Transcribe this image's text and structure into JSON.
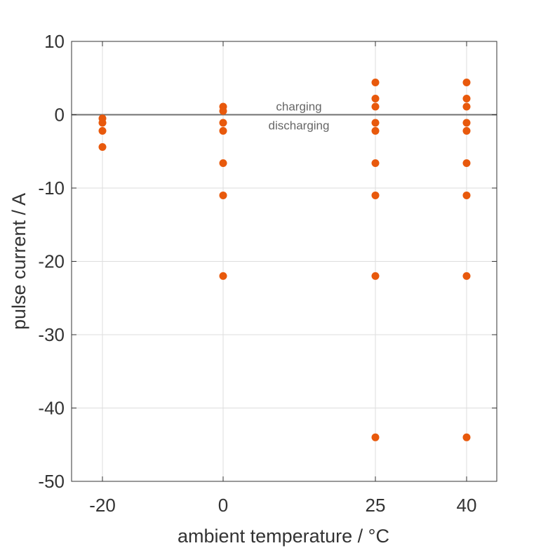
{
  "chart_data": {
    "type": "scatter",
    "xlabel": "ambient temperature / °C",
    "ylabel": "pulse current / A",
    "x_ticks": [
      -20,
      0,
      25,
      40
    ],
    "x_tick_labels": [
      "-20",
      "0",
      "25",
      "40"
    ],
    "y_ticks": [
      10,
      0,
      -10,
      -20,
      -30,
      -40,
      -50
    ],
    "y_tick_labels": [
      "10",
      "0",
      "-10",
      "-20",
      "-30",
      "-40",
      "-50"
    ],
    "ylim": [
      -50,
      10
    ],
    "grid": true,
    "reference_line": {
      "y": 0,
      "color": "#707070"
    },
    "annotations": {
      "above": "charging",
      "below": "discharging"
    },
    "marker_color": "#e8590c",
    "points": [
      {
        "x": -20,
        "y": -0.5
      },
      {
        "x": -20,
        "y": -1.1
      },
      {
        "x": -20,
        "y": -2.2
      },
      {
        "x": -20,
        "y": -4.4
      },
      {
        "x": 0,
        "y": 1.1
      },
      {
        "x": 0,
        "y": 0.5
      },
      {
        "x": 0,
        "y": -1.1
      },
      {
        "x": 0,
        "y": -2.2
      },
      {
        "x": 0,
        "y": -6.6
      },
      {
        "x": 0,
        "y": -11
      },
      {
        "x": 0,
        "y": -22
      },
      {
        "x": 25,
        "y": 4.4
      },
      {
        "x": 25,
        "y": 2.2
      },
      {
        "x": 25,
        "y": 1.1
      },
      {
        "x": 25,
        "y": -1.1
      },
      {
        "x": 25,
        "y": -2.2
      },
      {
        "x": 25,
        "y": -6.6
      },
      {
        "x": 25,
        "y": -11
      },
      {
        "x": 25,
        "y": -22
      },
      {
        "x": 25,
        "y": -44
      },
      {
        "x": 40,
        "y": 4.4
      },
      {
        "x": 40,
        "y": 2.2
      },
      {
        "x": 40,
        "y": 1.1
      },
      {
        "x": 40,
        "y": -1.1
      },
      {
        "x": 40,
        "y": -2.2
      },
      {
        "x": 40,
        "y": -6.6
      },
      {
        "x": 40,
        "y": -11
      },
      {
        "x": 40,
        "y": -22
      },
      {
        "x": 40,
        "y": -44
      }
    ]
  }
}
